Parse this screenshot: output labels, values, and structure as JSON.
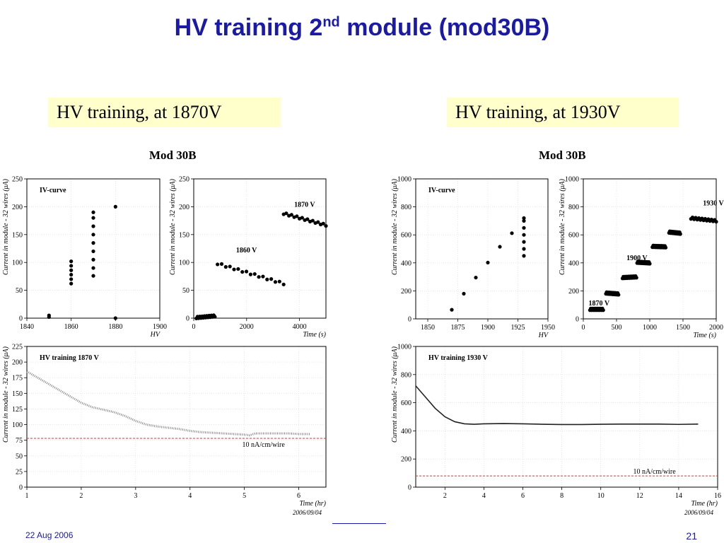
{
  "slide": {
    "title_main": "HV training 2",
    "title_sup": "nd",
    "title_rest": " module (mod30B)",
    "footer_date": "22 Aug 2006",
    "page_number": "21"
  },
  "captions": {
    "left": "HV training, at 1870V",
    "right": "HV training, at 1930V"
  },
  "figures": {
    "left_title": "Mod 30B",
    "right_title": "Mod 30B",
    "left_stamp": "2006/09/04",
    "right_stamp": "2006/09/04"
  },
  "chart_data": [
    {
      "id": "L1",
      "type": "scatter",
      "title": "IV-curve",
      "xlabel": "HV",
      "ylabel": "Current in module - 32 wires (μA)",
      "xlim": [
        1840,
        1900
      ],
      "ylim": [
        0,
        250
      ],
      "xticks": [
        "1840",
        "1860",
        "1880",
        "1900"
      ],
      "yticks": [
        "0",
        "50",
        "100",
        "150",
        "200",
        "250"
      ],
      "points": [
        [
          1850,
          2
        ],
        [
          1850,
          5
        ],
        [
          1860,
          62
        ],
        [
          1860,
          70
        ],
        [
          1860,
          78
        ],
        [
          1860,
          86
        ],
        [
          1860,
          94
        ],
        [
          1860,
          102
        ],
        [
          1870,
          76
        ],
        [
          1870,
          90
        ],
        [
          1870,
          105
        ],
        [
          1870,
          120
        ],
        [
          1870,
          135
        ],
        [
          1870,
          150
        ],
        [
          1870,
          165
        ],
        [
          1870,
          180
        ],
        [
          1870,
          190
        ],
        [
          1880,
          0
        ],
        [
          1880,
          200
        ]
      ]
    },
    {
      "id": "L2",
      "type": "scatter",
      "xlabel": "Time (s)",
      "ylabel": "Current in module - 32 wires (μA)",
      "xlim": [
        0,
        5000
      ],
      "ylim": [
        0,
        250
      ],
      "xticks": [
        "0",
        "2000",
        "4000"
      ],
      "yticks": [
        "0",
        "50",
        "100",
        "150",
        "200",
        "250"
      ],
      "annotations": [
        {
          "text": "1860 V",
          "x": 1600,
          "y": 118
        },
        {
          "text": "1870 V",
          "x": 3800,
          "y": 200
        }
      ],
      "segments": [
        {
          "x": [
            100,
            800
          ],
          "y": [
            1,
            4
          ]
        },
        {
          "x": [
            900,
            3400
          ],
          "y": [
            98,
            62
          ]
        },
        {
          "x": [
            3400,
            5000
          ],
          "y": [
            188,
            167
          ]
        }
      ]
    },
    {
      "id": "L3",
      "type": "line",
      "title": "HV training 1870 V",
      "xlabel": "Time (hr)",
      "ylabel": "Current in module - 32 wires (μA)",
      "xlim": [
        1,
        6.5
      ],
      "ylim": [
        0,
        225
      ],
      "xticks": [
        "1",
        "2",
        "3",
        "4",
        "5",
        "6"
      ],
      "yticks": [
        "0",
        "25",
        "50",
        "75",
        "100",
        "125",
        "150",
        "175",
        "200",
        "225"
      ],
      "reference": {
        "label": "10 nA/cm/wire",
        "y": 78
      },
      "x": [
        1,
        1.2,
        1.4,
        1.6,
        1.8,
        2.0,
        2.2,
        2.4,
        2.6,
        2.8,
        3.0,
        3.2,
        3.4,
        3.6,
        3.8,
        4.0,
        4.2,
        4.4,
        4.6,
        4.8,
        5.0,
        5.1,
        5.2,
        5.4,
        5.6,
        5.8,
        6.0,
        6.2
      ],
      "y": [
        185,
        175,
        165,
        155,
        145,
        135,
        128,
        124,
        120,
        114,
        106,
        100,
        97,
        95,
        93,
        90,
        88,
        87,
        86,
        85,
        84,
        83,
        86,
        86,
        86,
        86,
        85,
        85
      ]
    },
    {
      "id": "R1",
      "type": "scatter",
      "title": "IV-curve",
      "xlabel": "HV",
      "ylabel": "Current in module - 32 wires (μA)",
      "xlim": [
        1840,
        1950
      ],
      "ylim": [
        0,
        1000
      ],
      "xticks": [
        "1850",
        "1875",
        "1900",
        "1925",
        "1950"
      ],
      "yticks": [
        "0",
        "200",
        "400",
        "600",
        "800",
        "1000"
      ],
      "points": [
        [
          1870,
          65
        ],
        [
          1880,
          180
        ],
        [
          1890,
          295
        ],
        [
          1900,
          402
        ],
        [
          1910,
          515
        ],
        [
          1920,
          612
        ],
        [
          1930,
          450
        ],
        [
          1930,
          500
        ],
        [
          1930,
          550
        ],
        [
          1930,
          600
        ],
        [
          1930,
          650
        ],
        [
          1930,
          700
        ],
        [
          1930,
          720
        ]
      ]
    },
    {
      "id": "R2",
      "type": "scatter",
      "xlabel": "Time (s)",
      "ylabel": "Current in module - 32 wires (μA)",
      "xlim": [
        0,
        2000
      ],
      "ylim": [
        0,
        1000
      ],
      "xticks": [
        "0",
        "500",
        "1000",
        "1500",
        "2000"
      ],
      "yticks": [
        "0",
        "200",
        "400",
        "600",
        "800",
        "1000"
      ],
      "annotations": [
        {
          "text": "1870 V",
          "x": 80,
          "y": 95
        },
        {
          "text": "1900 V",
          "x": 650,
          "y": 420
        },
        {
          "text": "1930 V",
          "x": 1800,
          "y": 810
        }
      ],
      "segments": [
        {
          "x": [
            100,
            300
          ],
          "y": [
            68,
            68
          ]
        },
        {
          "x": [
            340,
            530
          ],
          "y": [
            185,
            178
          ]
        },
        {
          "x": [
            590,
            800
          ],
          "y": [
            295,
            300
          ]
        },
        {
          "x": [
            810,
            1000
          ],
          "y": [
            405,
            400
          ]
        },
        {
          "x": [
            1040,
            1240
          ],
          "y": [
            518,
            515
          ]
        },
        {
          "x": [
            1290,
            1460
          ],
          "y": [
            620,
            612
          ]
        },
        {
          "x": [
            1620,
            2000
          ],
          "y": [
            720,
            700
          ]
        }
      ]
    },
    {
      "id": "R3",
      "type": "line",
      "title": "HV training 1930 V",
      "xlabel": "Time (hr)",
      "ylabel": "Current in module - 32 wires (μA)",
      "xlim": [
        0.5,
        16
      ],
      "ylim": [
        0,
        1000
      ],
      "xticks": [
        "2",
        "4",
        "6",
        "8",
        "10",
        "12",
        "14",
        "16"
      ],
      "yticks": [
        "0",
        "200",
        "400",
        "600",
        "800",
        "1000"
      ],
      "reference": {
        "label": "10 nA/cm/wire",
        "y": 80
      },
      "x": [
        0.5,
        1,
        1.5,
        2,
        2.5,
        3,
        3.5,
        4,
        5,
        6,
        7,
        8,
        9,
        10,
        11,
        12,
        13,
        14,
        15
      ],
      "y": [
        720,
        640,
        560,
        500,
        465,
        450,
        447,
        450,
        452,
        450,
        447,
        445,
        445,
        447,
        448,
        448,
        448,
        446,
        448
      ]
    }
  ]
}
